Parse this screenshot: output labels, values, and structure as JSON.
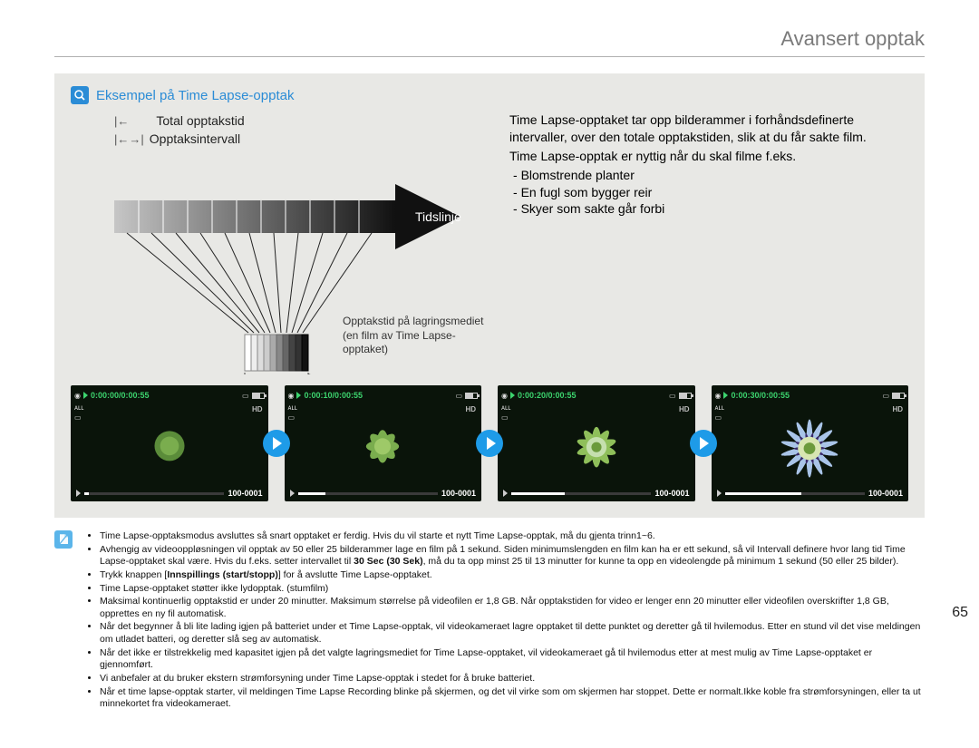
{
  "header": {
    "title": "Avansert opptak"
  },
  "example": {
    "title": "Eksempel på Time Lapse-opptak",
    "total_label": "Total opptakstid",
    "interval_label": "Opptaksintervall",
    "timeline_label": "Tidslinje",
    "storage_caption": "Opptakstid på lagringsmediet (en film av Time Lapse-opptaket)"
  },
  "description": {
    "intro1": "Time Lapse-opptaket tar opp bilderammer i forhåndsdefinerte intervaller, over den totale opptakstiden, slik at du får sakte film.",
    "intro2": "Time Lapse-opptak er nyttig når du skal filme f.eks.",
    "bullets": [
      "Blomstrende planter",
      "En fugl som bygger reir",
      "Skyer som sakte går forbi"
    ]
  },
  "thumbnails": [
    {
      "time": "0:00:00/0:00:55",
      "file": "100-0001",
      "progress": 0.03,
      "bloom": 0
    },
    {
      "time": "0:00:10/0:00:55",
      "file": "100-0001",
      "progress": 0.2,
      "bloom": 1
    },
    {
      "time": "0:00:20/0:00:55",
      "file": "100-0001",
      "progress": 0.38,
      "bloom": 2
    },
    {
      "time": "0:00:30/0:00:55",
      "file": "100-0001",
      "progress": 0.55,
      "bloom": 3
    }
  ],
  "notes": [
    "Time Lapse-opptaksmodus avsluttes så snart opptaket er ferdig. Hvis du vil starte et nytt Time Lapse-opptak, må du gjenta trinn1~6.",
    "Avhengig av videooppløsningen vil opptak av 50 eller 25 bilderammer lage en film på 1 sekund. Siden minimumslengden en film kan ha er ett sekund, så vil Intervall definere hvor lang tid Time Lapse-opptaket skal være. Hvis du f.eks. setter intervallet til <b>30 Sec (30 Sek)</b>, må du ta opp minst 25 til 13 minutter for kunne ta opp en videolengde på minimum 1 sekund (50 eller 25 bilder).",
    "Trykk knappen [<b>Innspillings (start/stopp)</b>] for å avslutte Time Lapse-opptaket.",
    "Time Lapse-opptaket støtter ikke lydopptak. (stumfilm)",
    "Maksimal kontinuerlig opptakstid er under 20 minutter. Maksimum størrelse på videofilen er 1,8 GB. Når opptakstiden for video er lenger enn 20 minutter eller videofilen overskrifter 1,8 GB, opprettes en ny fil automatisk.",
    "Når det begynner å bli lite lading igjen på batteriet under et Time Lapse-opptak, vil videokameraet lagre opptaket til dette punktet og deretter gå til hvilemodus. Etter en stund vil det vise meldingen om utladet batteri, og deretter slå seg av automatisk.",
    "Når det ikke er tilstrekkelig med kapasitet igjen på det valgte lagringsmediet for Time Lapse-opptaket, vil videokameraet gå til hvilemodus etter at mest mulig av Time Lapse-opptaket er gjennomført.",
    "Vi anbefaler at du bruker ekstern strømforsyning under Time Lapse-opptak i stedet for å bruke batteriet.",
    "Når et time lapse-opptak starter, vil meldingen Time Lapse Recording blinke på skjermen, og det vil virke som om skjermen har stoppet. Dette er normalt.Ikke koble fra strømforsyningen, eller ta ut minnekortet fra videokameraet."
  ],
  "page_number": "65",
  "colors": {
    "header_grey": "#7a7a7a",
    "accent_blue": "#2b8cd6",
    "arrow_blue": "#1e9be8",
    "panel_bg": "#e8e8e5",
    "time_green": "#3cd46e"
  }
}
